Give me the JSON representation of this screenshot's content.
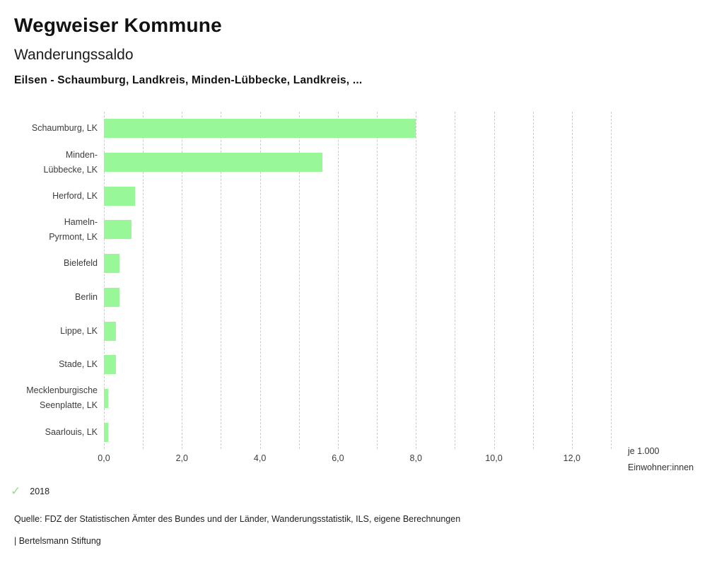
{
  "header": {
    "app_title": "Wegweiser Kommune",
    "chart_title": "Wanderungssaldo",
    "selection": "Eilsen - Schaumburg, Landkreis, Minden-Lübbecke, Landkreis, ..."
  },
  "chart_data": {
    "type": "bar",
    "orientation": "horizontal",
    "title": "Wanderungssaldo",
    "xlabel": "je 1.000 Einwohner:innen",
    "unit_label_lines": [
      "je 1.000",
      "Einwohner:innen"
    ],
    "year": "2018",
    "categories": [
      "Schaumburg, LK",
      "Minden-Lübbecke, LK",
      "Herford, LK",
      "Hameln-Pyrmont, LK",
      "Bielefeld",
      "Berlin",
      "Lippe, LK",
      "Stade, LK",
      "Mecklenburgische Seenplatte, LK",
      "Saarlouis, LK"
    ],
    "category_label_lines": [
      [
        "Schaumburg, LK"
      ],
      [
        "Minden-",
        "Lübbecke, LK"
      ],
      [
        "Herford, LK"
      ],
      [
        "Hameln-",
        "Pyrmont, LK"
      ],
      [
        "Bielefeld"
      ],
      [
        "Berlin"
      ],
      [
        "Lippe, LK"
      ],
      [
        "Stade, LK"
      ],
      [
        "Mecklenburgische",
        "Seenplatte, LK"
      ],
      [
        "Saarlouis, LK"
      ]
    ],
    "values": [
      8.0,
      5.6,
      0.8,
      0.7,
      0.4,
      0.4,
      0.3,
      0.3,
      0.1,
      0.1
    ],
    "xlim": [
      0,
      13
    ],
    "grid": true,
    "grid_step": 1,
    "xticks": [
      {
        "value": 0,
        "label": "0,0"
      },
      {
        "value": 2,
        "label": "2,0"
      },
      {
        "value": 4,
        "label": "4,0"
      },
      {
        "value": 6,
        "label": "6,0"
      },
      {
        "value": 8,
        "label": "8,0"
      },
      {
        "value": 10,
        "label": "10,0"
      },
      {
        "value": 12,
        "label": "12,0"
      }
    ],
    "bar_color": "#98f898",
    "grid_color": "#cccccc"
  },
  "legend": {
    "check_icon": "✓",
    "check_color": "#8fe28f",
    "year_label": "2018"
  },
  "footer": {
    "source_line": "Quelle: FDZ der Statistischen Ämter des Bundes und der Länder, Wanderungsstatistik, ILS, eigene Berechnungen",
    "brand_line": "| Bertelsmann Stiftung"
  }
}
